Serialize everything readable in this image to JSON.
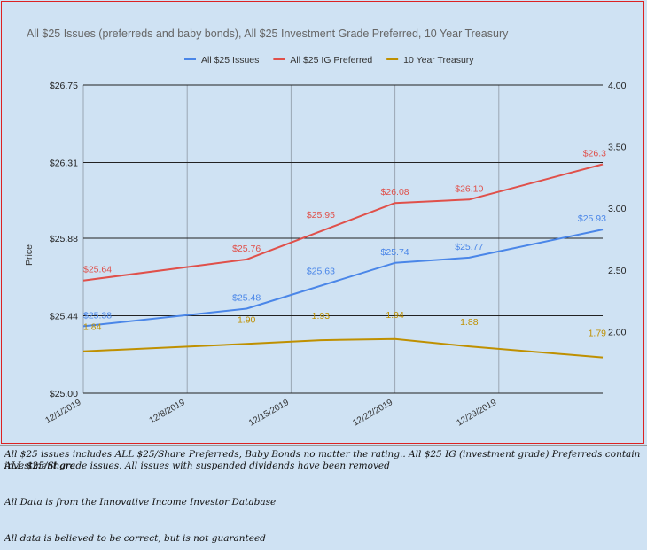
{
  "chart_data": {
    "type": "line",
    "title": "All $25 Issues (preferreds and baby bonds), All $25 Investment Grade Preferred, 10 Year Treasury",
    "ylabel": "Price",
    "legend_position": "top",
    "x_dates": [
      "2019-12-01",
      "2019-12-08",
      "2019-12-15",
      "2019-12-22",
      "2019-12-29",
      "2020-01-05"
    ],
    "x_tick_labels": [
      "12/1/2019",
      "12/8/2019",
      "12/15/2019",
      "12/22/2019",
      "12/29/2019"
    ],
    "series": [
      {
        "name": "All $25 Issues",
        "axis": "left",
        "color": "#4a86e8",
        "x": [
          "2019-12-01",
          "2019-12-12",
          "2019-12-22",
          "2019-12-27",
          "2020-01-05"
        ],
        "values": [
          25.38,
          25.48,
          25.74,
          25.77,
          25.93
        ],
        "point_labels": [
          {
            "x": "2019-12-01",
            "value": 25.38,
            "text": "$25.38"
          },
          {
            "x": "2019-12-12",
            "value": 25.48,
            "text": "$25.48"
          },
          {
            "x": "2019-12-17",
            "value": 25.63,
            "text": "$25.63"
          },
          {
            "x": "2019-12-22",
            "value": 25.74,
            "text": "$25.74"
          },
          {
            "x": "2019-12-27",
            "value": 25.77,
            "text": "$25.77"
          },
          {
            "x": "2020-01-05",
            "value": 25.93,
            "text": "$25.93"
          }
        ]
      },
      {
        "name": "All $25 IG Preferred",
        "axis": "left",
        "color": "#e0504a",
        "x": [
          "2019-12-01",
          "2019-12-12",
          "2019-12-22",
          "2019-12-27",
          "2020-01-05"
        ],
        "values": [
          25.64,
          25.76,
          26.08,
          26.1,
          26.3
        ],
        "point_labels": [
          {
            "x": "2019-12-01",
            "value": 25.64,
            "text": "$25.64"
          },
          {
            "x": "2019-12-12",
            "value": 25.76,
            "text": "$25.76"
          },
          {
            "x": "2019-12-17",
            "value": 25.95,
            "text": "$25.95"
          },
          {
            "x": "2019-12-22",
            "value": 26.08,
            "text": "$26.08"
          },
          {
            "x": "2019-12-27",
            "value": 26.1,
            "text": "$26.10"
          },
          {
            "x": "2020-01-05",
            "value": 26.3,
            "text": "$26.3"
          }
        ]
      },
      {
        "name": "10 Year Treasury",
        "axis": "right",
        "color": "#bf9000",
        "x": [
          "2019-12-01",
          "2019-12-12",
          "2019-12-17",
          "2019-12-22",
          "2019-12-27",
          "2020-01-05"
        ],
        "values": [
          1.84,
          1.9,
          1.93,
          1.94,
          1.88,
          1.79
        ],
        "point_labels": [
          {
            "x": "2019-12-01",
            "value": 1.84,
            "text": "1.84"
          },
          {
            "x": "2019-12-12",
            "value": 1.9,
            "text": "1.90"
          },
          {
            "x": "2019-12-17",
            "value": 1.93,
            "text": "1.93"
          },
          {
            "x": "2019-12-22",
            "value": 1.94,
            "text": "1.94"
          },
          {
            "x": "2019-12-27",
            "value": 1.88,
            "text": "1.88"
          },
          {
            "x": "2020-01-05",
            "value": 1.79,
            "text": "1.79"
          }
        ]
      }
    ],
    "y_left": {
      "ylim": [
        25.0,
        26.75
      ],
      "ticks": [
        25.0,
        25.44,
        25.88,
        26.31,
        26.75
      ],
      "tick_labels": [
        "$25.00",
        "$25.44",
        "$25.88",
        "$26.31",
        "$26.75"
      ]
    },
    "y_right": {
      "ylim": [
        1.5,
        4.0
      ],
      "ticks": [
        2.0,
        2.5,
        3.0,
        3.5,
        4.0
      ],
      "tick_labels": [
        "2.00",
        "2.50",
        "3.00",
        "3.50",
        "4.00"
      ]
    },
    "grid": true
  },
  "notes": {
    "line1": "All $25 issues includes ALL $25/Share Preferreds, Baby Bonds no matter the rating..  All $25 IG (investment grade) Preferreds contain ALL $25/Share",
    "line2": "investment grade issues.  All issues with suspended dividends have been removed",
    "line3": "All Data is from the  Innovative Income Investor Database",
    "line4": "All data is believed to be correct, but is not guaranteed"
  }
}
